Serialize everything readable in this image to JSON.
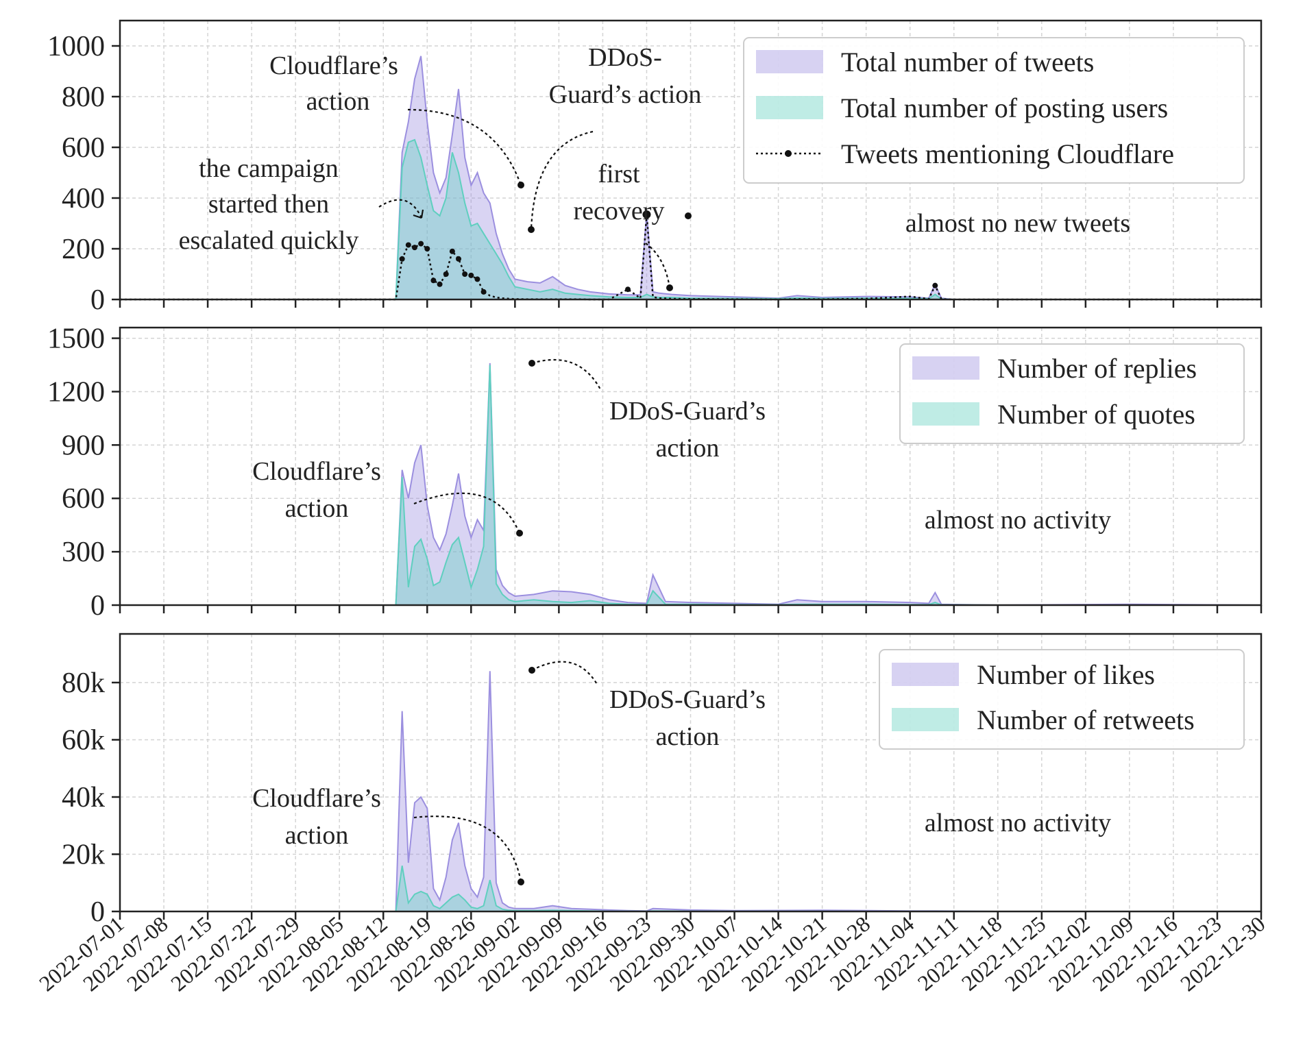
{
  "chart_data": [
    {
      "type": "area",
      "x": [
        "07-01",
        "07-08",
        "07-15",
        "07-22",
        "07-29",
        "08-05",
        "08-12",
        "08-14",
        "08-15",
        "08-16",
        "08-17",
        "08-18",
        "08-19",
        "08-20",
        "08-21",
        "08-22",
        "08-23",
        "08-24",
        "08-25",
        "08-26",
        "08-27",
        "08-28",
        "08-29",
        "08-30",
        "08-31",
        "09-01",
        "09-02",
        "09-04",
        "09-06",
        "09-08",
        "09-10",
        "09-12",
        "09-14",
        "09-17",
        "09-20",
        "09-22",
        "09-23",
        "09-24",
        "09-25",
        "09-27",
        "09-30",
        "10-07",
        "10-14",
        "10-17",
        "10-21",
        "10-28",
        "11-04",
        "11-07",
        "11-08",
        "11-09",
        "11-11",
        "11-18",
        "11-25",
        "12-02",
        "12-09",
        "12-16",
        "12-23",
        "12-30"
      ],
      "series": [
        {
          "name": "Total number of tweets",
          "color": "#9b8fdf",
          "values": [
            0,
            0,
            0,
            0,
            0,
            0,
            0,
            0,
            580,
            700,
            870,
            960,
            700,
            500,
            420,
            480,
            650,
            830,
            560,
            450,
            500,
            420,
            380,
            260,
            180,
            120,
            80,
            70,
            65,
            90,
            55,
            40,
            30,
            22,
            18,
            18,
            340,
            30,
            25,
            20,
            15,
            10,
            5,
            15,
            8,
            12,
            10,
            5,
            60,
            5,
            0,
            0,
            0,
            0,
            0,
            0,
            0,
            0
          ]
        },
        {
          "name": "Total number of posting users",
          "color": "#5fcfbf",
          "values": [
            0,
            0,
            0,
            0,
            0,
            0,
            0,
            0,
            520,
            620,
            630,
            560,
            450,
            350,
            330,
            400,
            580,
            500,
            380,
            290,
            300,
            260,
            220,
            180,
            140,
            90,
            50,
            40,
            30,
            40,
            25,
            20,
            15,
            10,
            8,
            8,
            20,
            10,
            8,
            8,
            5,
            4,
            3,
            6,
            4,
            5,
            4,
            3,
            20,
            2,
            0,
            0,
            0,
            0,
            0,
            0,
            0,
            0
          ]
        },
        {
          "name": "Tweets mentioning Cloudflare",
          "color": "#111111",
          "values": [
            0,
            0,
            0,
            0,
            0,
            0,
            0,
            0,
            160,
            215,
            205,
            220,
            200,
            75,
            60,
            100,
            190,
            160,
            100,
            95,
            80,
            30,
            15,
            8,
            5,
            3,
            2,
            1,
            1,
            1,
            1,
            1,
            0,
            0,
            40,
            5,
            335,
            10,
            5,
            3,
            2,
            1,
            0,
            2,
            1,
            3,
            12,
            2,
            55,
            2,
            0,
            0,
            0,
            0,
            0,
            0,
            0,
            0
          ]
        }
      ],
      "ylim": [
        0,
        1100
      ],
      "yticks": [
        "0",
        "200",
        "400",
        "600",
        "800",
        "1000"
      ],
      "legend": [
        "Total number of tweets",
        "Total number of posting users",
        "Tweets mentioning Cloudflare"
      ],
      "annotations": [
        "Cloudflare’s action",
        "DDoS- Guard’s action",
        "the campaign started then escalated quickly",
        "first recovery",
        "almost no new tweets"
      ]
    },
    {
      "type": "area",
      "x": [
        "07-01",
        "08-14",
        "08-15",
        "08-16",
        "08-17",
        "08-18",
        "08-19",
        "08-20",
        "08-21",
        "08-22",
        "08-23",
        "08-24",
        "08-25",
        "08-26",
        "08-27",
        "08-28",
        "08-29",
        "08-30",
        "08-31",
        "09-01",
        "09-02",
        "09-05",
        "09-08",
        "09-11",
        "09-14",
        "09-17",
        "09-20",
        "09-23",
        "09-24",
        "09-26",
        "09-30",
        "10-07",
        "10-14",
        "10-17",
        "10-21",
        "10-28",
        "11-04",
        "11-07",
        "11-08",
        "11-09",
        "11-18",
        "12-09",
        "12-30"
      ],
      "series": [
        {
          "name": "Number of replies",
          "color": "#9b8fdf",
          "values": [
            0,
            0,
            760,
            600,
            800,
            900,
            560,
            380,
            310,
            400,
            560,
            740,
            500,
            380,
            480,
            420,
            1360,
            200,
            110,
            70,
            50,
            60,
            80,
            75,
            60,
            30,
            15,
            10,
            170,
            20,
            15,
            10,
            5,
            30,
            20,
            20,
            15,
            10,
            70,
            5,
            0,
            5,
            0
          ]
        },
        {
          "name": "Number of quotes",
          "color": "#5fcfbf",
          "values": [
            0,
            0,
            720,
            100,
            330,
            370,
            260,
            110,
            130,
            240,
            340,
            380,
            240,
            100,
            200,
            330,
            1350,
            120,
            60,
            30,
            20,
            30,
            20,
            15,
            25,
            10,
            5,
            3,
            80,
            5,
            5,
            3,
            2,
            5,
            5,
            5,
            3,
            3,
            15,
            2,
            0,
            0,
            0
          ]
        }
      ],
      "ylim": [
        0,
        1560
      ],
      "yticks": [
        "0",
        "300",
        "600",
        "900",
        "1200",
        "1500"
      ],
      "legend": [
        "Number of replies",
        "Number of quotes"
      ],
      "annotations": [
        "DDoS-Guard’s action",
        "Cloudflare’s action",
        "almost no activity"
      ]
    },
    {
      "type": "area",
      "x": [
        "07-01",
        "08-14",
        "08-15",
        "08-16",
        "08-17",
        "08-18",
        "08-19",
        "08-20",
        "08-21",
        "08-22",
        "08-23",
        "08-24",
        "08-25",
        "08-26",
        "08-27",
        "08-28",
        "08-29",
        "08-30",
        "08-31",
        "09-01",
        "09-02",
        "09-05",
        "09-08",
        "09-11",
        "09-14",
        "09-17",
        "09-20",
        "09-23",
        "09-24",
        "09-30",
        "10-07",
        "10-21",
        "11-04",
        "11-08",
        "11-18",
        "12-30"
      ],
      "series": [
        {
          "name": "Number of likes",
          "color": "#9b8fdf",
          "values": [
            0,
            0,
            70000,
            17000,
            38000,
            40000,
            36000,
            8000,
            4000,
            12000,
            25000,
            31000,
            16000,
            8000,
            5000,
            12000,
            84000,
            10000,
            3000,
            1500,
            1000,
            1000,
            2000,
            1000,
            800,
            500,
            300,
            200,
            1000,
            500,
            300,
            400,
            200,
            200,
            0,
            0
          ]
        },
        {
          "name": "Number of retweets",
          "color": "#5fcfbf",
          "values": [
            0,
            0,
            16000,
            3000,
            6000,
            7000,
            6000,
            2000,
            1000,
            3000,
            5000,
            6000,
            4000,
            1500,
            1000,
            2000,
            11000,
            2000,
            800,
            400,
            300,
            300,
            400,
            300,
            200,
            100,
            100,
            50,
            200,
            100,
            50,
            50,
            30,
            30,
            0,
            0
          ]
        }
      ],
      "ylim": [
        0,
        97000
      ],
      "yticks": [
        "0",
        "20k",
        "40k",
        "60k",
        "80k"
      ],
      "legend": [
        "Number of likes",
        "Number of retweets"
      ],
      "annotations": [
        "DDoS-Guard’s action",
        "Cloudflare’s action",
        "almost no activity"
      ]
    }
  ],
  "x_tick_labels": [
    "2022-07-01",
    "2022-07-08",
    "2022-07-15",
    "2022-07-22",
    "2022-07-29",
    "2022-08-05",
    "2022-08-12",
    "2022-08-19",
    "2022-08-26",
    "2022-09-02",
    "2022-09-09",
    "2022-09-16",
    "2022-09-23",
    "2022-09-30",
    "2022-10-07",
    "2022-10-14",
    "2022-10-21",
    "2022-10-28",
    "2022-11-04",
    "2022-11-11",
    "2022-11-18",
    "2022-11-25",
    "2022-12-02",
    "2022-12-09",
    "2022-12-16",
    "2022-12-23",
    "2022-12-30"
  ]
}
